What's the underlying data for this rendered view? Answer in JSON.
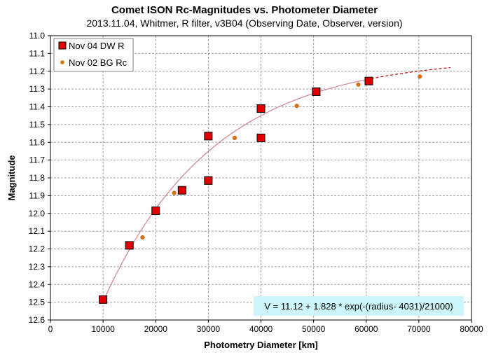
{
  "chart_data": {
    "type": "scatter",
    "title": "Comet ISON Rc-Magnitudes  vs. Photometer Diameter",
    "subtitle": "2013.11.04,  Whitmer, R filter, v3B04 (Observing Date, Observer, version)",
    "xlabel": "Photometry Diameter  [km]",
    "ylabel": "Magnitude",
    "xlim": [
      0,
      80000
    ],
    "ylim": [
      11.0,
      12.6
    ],
    "y_inverted": true,
    "grid": true,
    "legend_position": "top-left",
    "x_ticks": [
      "0",
      "10000",
      "20000",
      "30000",
      "40000",
      "50000",
      "60000",
      "70000",
      "80000"
    ],
    "y_ticks": [
      "11.0",
      "11.1",
      "11.2",
      "11.3",
      "11.4",
      "11.5",
      "11.6",
      "11.7",
      "11.8",
      "11.9",
      "12.0",
      "12.1",
      "12.2",
      "12.3",
      "12.4",
      "12.5",
      "12.6"
    ],
    "series": [
      {
        "name": "Nov 04 DW R",
        "marker": "square",
        "color": "#e00000",
        "x": [
          10000,
          15000,
          20000,
          25000,
          30000,
          30000,
          40000,
          40000,
          50500,
          60500
        ],
        "y": [
          12.485,
          12.18,
          11.985,
          11.87,
          11.565,
          11.815,
          11.41,
          11.575,
          11.315,
          11.255
        ]
      },
      {
        "name": "Nov 02 BG Rc",
        "marker": "circle",
        "color": "#e07000",
        "x": [
          17500,
          23500,
          35000,
          46800,
          58500,
          70200
        ],
        "y": [
          12.135,
          11.885,
          11.575,
          11.395,
          11.275,
          11.23
        ]
      }
    ],
    "fit": {
      "equation_label": "V = 11.12 + 1.828 * exp(-(radius- 4031)/21000)",
      "offset": 11.12,
      "amplitude": 1.828,
      "r0": 4031,
      "scale": 21000,
      "solid_range": [
        10000,
        60000
      ],
      "dashed_range": [
        60000,
        76000
      ],
      "color": "#d08090"
    },
    "colors": {
      "grid": "#a0a0a0",
      "equation_box": "#cdf6fa"
    }
  }
}
